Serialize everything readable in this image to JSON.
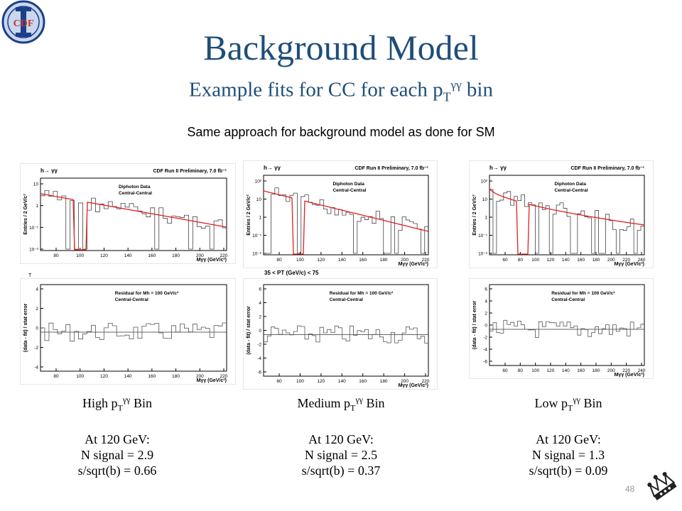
{
  "slide": {
    "title": "Background Model",
    "subtitle_pre": "Example fits for CC for each p",
    "subtitle_sub": "T",
    "subtitle_sup": "γγ",
    "subtitle_post": " bin",
    "approach": "Same approach for background model as done for SM",
    "slide_number": "48"
  },
  "logo_cdf": "CDF",
  "plot_text": {
    "channel": "h→ γγ",
    "collab": "CDF Run II Preliminary, 7.0 fb⁻¹",
    "data": "Diphoton Data",
    "region": "Central-Central",
    "residual": "Residual for Mh = 100 GeV/c²",
    "ylabel_top": "Entries / 2 GeV/c²",
    "ylabel_bottom": "(data - fit) / stat error",
    "xlabel": "Mγγ (GeV/c²)",
    "pt_range": "35 < PT (GeV/c) < 75",
    "stray": "T"
  },
  "panels": [
    {
      "id": "high",
      "top_yticks": [
        "10",
        "1",
        "10⁻¹",
        "10⁻²"
      ],
      "xticks": [
        "80",
        "100",
        "120",
        "140",
        "160",
        "180",
        "200",
        "220"
      ],
      "res_yticks": [
        "4",
        "2",
        "0",
        "-2",
        "-4"
      ],
      "caption_bin_pre": "High p",
      "caption_bin_sub": "T",
      "caption_bin_sup": "γγ",
      "caption_bin_post": " Bin",
      "at": "At 120 GeV:",
      "signal": "N signal = 2.9",
      "ssb": "s/sqrt(b) = 0.66"
    },
    {
      "id": "medium",
      "top_yticks": [
        "10²",
        "10",
        "1",
        "10⁻¹",
        "10⁻²"
      ],
      "xticks": [
        "80",
        "100",
        "120",
        "140",
        "160",
        "180",
        "200",
        "220"
      ],
      "res_yticks": [
        "6",
        "4",
        "2",
        "0",
        "-2",
        "-4",
        "-6"
      ],
      "caption_bin_pre": "Medium p",
      "caption_bin_sub": "T",
      "caption_bin_sup": "γγ",
      "caption_bin_post": " Bin",
      "at": "At 120 GeV:",
      "signal": "N signal = 2.5",
      "ssb": "s/sqrt(b) = 0.37"
    },
    {
      "id": "low",
      "top_yticks": [
        "10²",
        "10",
        "1",
        "10⁻¹",
        "10⁻²"
      ],
      "xticks": [
        "60",
        "80",
        "100",
        "120",
        "140",
        "160",
        "180",
        "200",
        "220",
        "240"
      ],
      "res_yticks": [
        "6",
        "4",
        "2",
        "0",
        "-2",
        "-4",
        "-6"
      ],
      "caption_bin_pre": "Low p",
      "caption_bin_sub": "T",
      "caption_bin_sup": "γγ",
      "caption_bin_post": " Bin",
      "at": "At 120 GeV:",
      "signal": "N signal = 1.3",
      "ssb": "s/sqrt(b) = 0.09"
    }
  ]
}
